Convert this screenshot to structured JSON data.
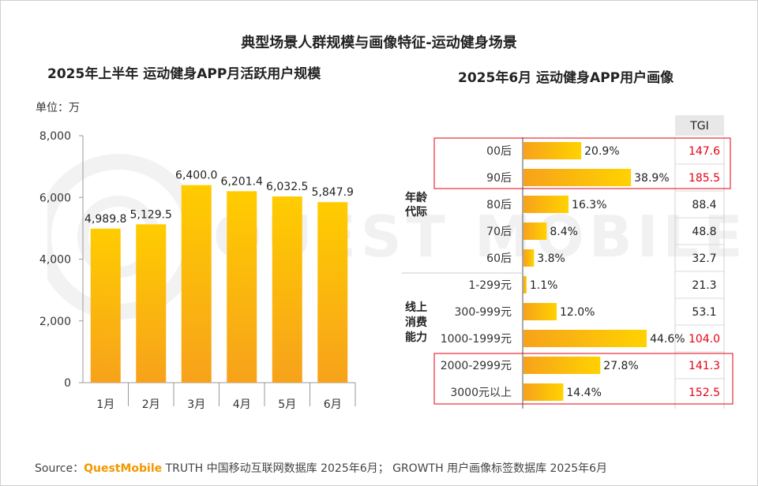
{
  "title": "典型场景人群规模与画像特征-运动健身场景",
  "chart_data": [
    {
      "type": "bar",
      "title": "2025年上半年 运动健身APP月活跃用户规模",
      "unit_label": "单位：万",
      "categories": [
        "1月",
        "2月",
        "3月",
        "4月",
        "5月",
        "6月"
      ],
      "values": [
        4989.8,
        5129.5,
        6400.0,
        6201.4,
        6032.5,
        5847.9
      ],
      "value_labels": [
        "4,989.8",
        "5,129.5",
        "6,400.0",
        "6,201.4",
        "6,032.5",
        "5,847.9"
      ],
      "yticks": [
        0,
        2000,
        4000,
        6000,
        8000
      ],
      "ytick_labels": [
        "0",
        "2,000",
        "4,000",
        "6,000",
        "8,000"
      ],
      "ylim": [
        0,
        8000
      ],
      "colors": {
        "bar_top": "#ffcc00",
        "bar_bottom": "#f7a21b"
      }
    },
    {
      "type": "bar",
      "orientation": "horizontal",
      "title": "2025年6月 运动健身APP用户画像",
      "tgi_header": "TGI",
      "groups": [
        {
          "label_line1": "年龄",
          "label_line2": "代际",
          "label_line3": "",
          "label_line4": ""
        },
        {
          "label_line1": "线上",
          "label_line2": "消费",
          "label_line3": "能力",
          "label_line4": ""
        }
      ],
      "rows": [
        {
          "category": "00后",
          "value": 20.9,
          "value_label": "20.9%",
          "tgi": "147.6",
          "highlight": true
        },
        {
          "category": "90后",
          "value": 38.9,
          "value_label": "38.9%",
          "tgi": "185.5",
          "highlight": true
        },
        {
          "category": "80后",
          "value": 16.3,
          "value_label": "16.3%",
          "tgi": "88.4",
          "highlight": false
        },
        {
          "category": "70后",
          "value": 8.4,
          "value_label": "8.4%",
          "tgi": "48.8",
          "highlight": false
        },
        {
          "category": "60后",
          "value": 3.8,
          "value_label": "3.8%",
          "tgi": "32.7",
          "highlight": false
        },
        {
          "category": "1-299元",
          "value": 1.1,
          "value_label": "1.1%",
          "tgi": "21.3",
          "highlight": false
        },
        {
          "category": "300-999元",
          "value": 12.0,
          "value_label": "12.0%",
          "tgi": "53.1",
          "highlight": false
        },
        {
          "category": "1000-1999元",
          "value": 44.6,
          "value_label": "44.6%",
          "tgi": "104.0",
          "highlight": true
        },
        {
          "category": "2000-2999元",
          "value": 27.8,
          "value_label": "27.8%",
          "tgi": "141.3",
          "highlight": true
        },
        {
          "category": "3000元以上",
          "value": 14.4,
          "value_label": "14.4%",
          "tgi": "152.5",
          "highlight": true
        }
      ],
      "xlim": [
        0,
        50
      ],
      "colors": {
        "bar_left": "#f7a21b",
        "bar_right": "#ffd200",
        "tgi_high": "#e60012",
        "tgi_normal": "#222222",
        "box": "#e60012"
      }
    }
  ],
  "watermark": "QUEST MOBILE",
  "source": {
    "prefix": "Source：",
    "brand": "QuestMobile",
    "rest": " TRUTH 中国移动互联网数据库 2025年6月； GROWTH 用户画像标签数据库 2025年6月"
  }
}
